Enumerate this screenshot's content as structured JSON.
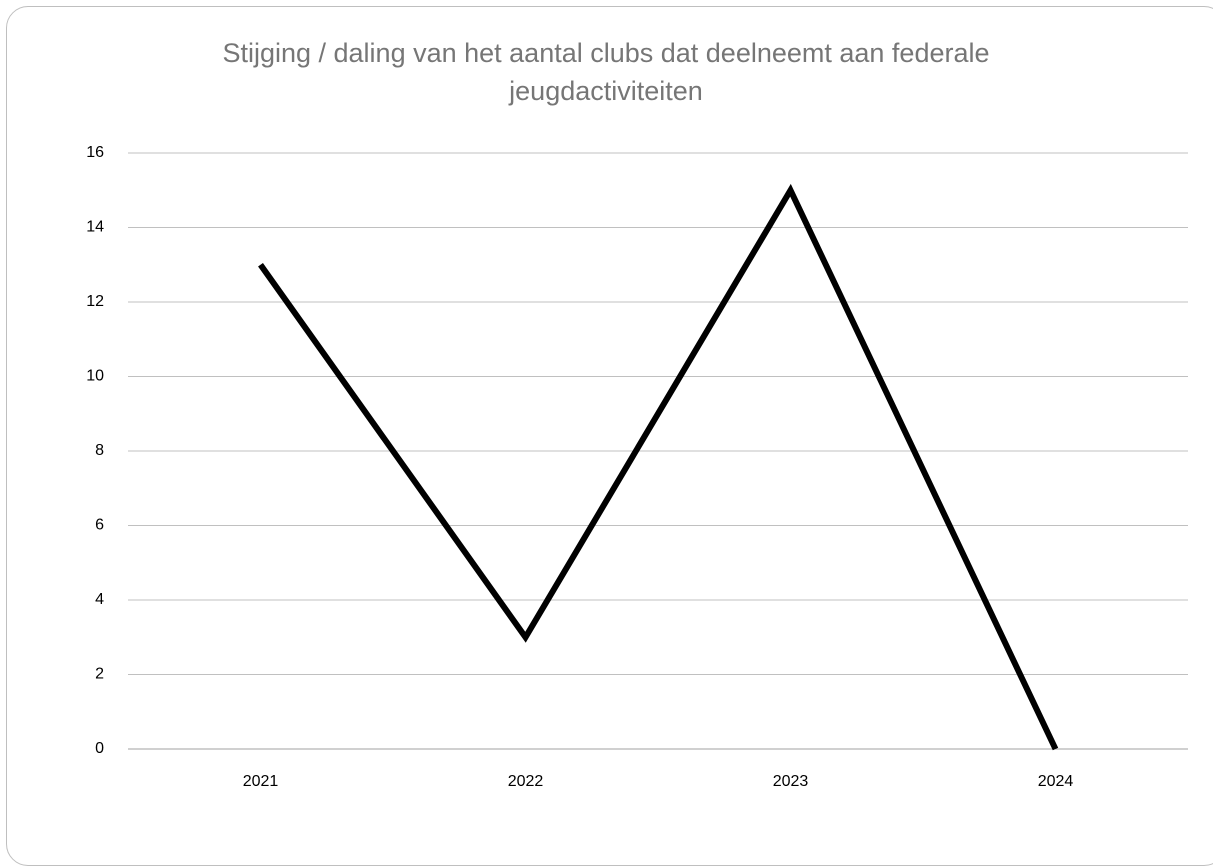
{
  "chart_data": {
    "type": "line",
    "title": "Stijging / daling van het aantal clubs dat deelneemt aan federale jeugdactiviteiten",
    "categories": [
      "2021",
      "2022",
      "2023",
      "2024"
    ],
    "series": [
      {
        "color": "#000000",
        "values": [
          13,
          3,
          15,
          0
        ]
      }
    ],
    "ylim": [
      0,
      16
    ],
    "yticks": [
      0,
      2,
      4,
      6,
      8,
      10,
      12,
      14,
      16
    ],
    "grid": true
  }
}
